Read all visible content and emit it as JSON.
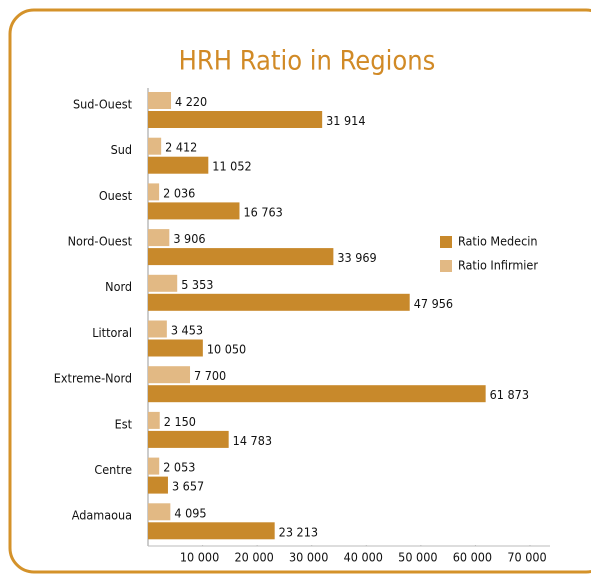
{
  "chart_data": {
    "type": "bar",
    "orientation": "horizontal",
    "title": "HRH Ratio in Regions",
    "categories": [
      "Sud-Ouest",
      "Sud",
      "Ouest",
      "Nord-Ouest",
      "Nord",
      "Littoral",
      "Extreme-Nord",
      "Est",
      "Centre",
      "Adamaoua"
    ],
    "series": [
      {
        "name": "Ratio Infirmier",
        "color": "#e2b984",
        "values": [
          4220,
          2412,
          2036,
          3906,
          5353,
          3453,
          7700,
          2150,
          2053,
          4095
        ],
        "value_labels": [
          "4 220",
          "2 412",
          "2 036",
          "3 906",
          "5 353",
          "3 453",
          "7 700",
          "2 150",
          "2 053",
          "4 095"
        ]
      },
      {
        "name": "Ratio Medecin",
        "color": "#c8892b",
        "values": [
          31914,
          11052,
          16763,
          33969,
          47956,
          10050,
          61873,
          14783,
          3657,
          23213
        ],
        "value_labels": [
          "31 914",
          "11 052",
          "16 763",
          "33 969",
          "47 956",
          "10 050",
          "61 873",
          "14 783",
          "3 657",
          "23 213"
        ]
      }
    ],
    "xlim": [
      0,
      70000
    ],
    "xticks": [
      {
        "value": 10000,
        "label": "10 000"
      },
      {
        "value": 20000,
        "label": "20 000"
      },
      {
        "value": 30000,
        "label": "30 000"
      },
      {
        "value": 40000,
        "label": "40 000"
      },
      {
        "value": 50000,
        "label": "50 000"
      },
      {
        "value": 60000,
        "label": "60 000"
      },
      {
        "value": 70000,
        "label": "70 000"
      }
    ],
    "legend": "right"
  }
}
